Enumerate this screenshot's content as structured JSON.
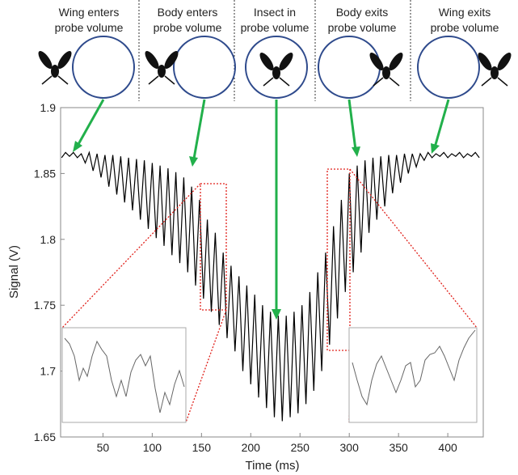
{
  "chart_data": {
    "type": "line",
    "y_label": "Signal (V)",
    "x_label": "Time (ms)",
    "annotations": [
      [
        "Wing enters",
        "probe volume"
      ],
      [
        "Body enters",
        "probe volume"
      ],
      [
        "Insect in",
        "probe volume"
      ],
      [
        "Body exits",
        "probe volume"
      ],
      [
        "Wing exits",
        "probe volume"
      ]
    ],
    "color": "#000000",
    "xlim": [
      7,
      436
    ],
    "ylim": [
      1.65,
      1.9
    ],
    "xticks": [
      50,
      100,
      150,
      200,
      250,
      300,
      350,
      400
    ],
    "yticks": [
      1.65,
      1.7,
      1.75,
      1.8,
      1.85,
      1.9
    ],
    "x": [
      8,
      12,
      16,
      20,
      24,
      28,
      32,
      36,
      40,
      44,
      48,
      52,
      56,
      60,
      64,
      68,
      72,
      76,
      80,
      84,
      88,
      92,
      96,
      100,
      104,
      108,
      112,
      116,
      120,
      124,
      128,
      132,
      136,
      140,
      144,
      148,
      152,
      156,
      160,
      164,
      168,
      172,
      176,
      180,
      184,
      188,
      192,
      196,
      200,
      204,
      208,
      212,
      216,
      220,
      224,
      228,
      232,
      236,
      240,
      244,
      248,
      252,
      256,
      260,
      264,
      268,
      272,
      276,
      280,
      284,
      288,
      292,
      296,
      300,
      304,
      308,
      312,
      316,
      320,
      324,
      328,
      332,
      336,
      340,
      344,
      348,
      352,
      356,
      360,
      364,
      368,
      372,
      376,
      380,
      384,
      388,
      392,
      396,
      400,
      404,
      408,
      412,
      416,
      420,
      424,
      428,
      432
    ],
    "values": [
      1.862,
      1.866,
      1.863,
      1.866,
      1.862,
      1.865,
      1.858,
      1.866,
      1.852,
      1.865,
      1.847,
      1.864,
      1.84,
      1.864,
      1.834,
      1.863,
      1.828,
      1.862,
      1.822,
      1.861,
      1.815,
      1.86,
      1.808,
      1.858,
      1.801,
      1.856,
      1.795,
      1.854,
      1.788,
      1.851,
      1.782,
      1.847,
      1.775,
      1.84,
      1.765,
      1.83,
      1.755,
      1.815,
      1.745,
      1.805,
      1.735,
      1.79,
      1.725,
      1.78,
      1.715,
      1.772,
      1.7,
      1.765,
      1.69,
      1.758,
      1.68,
      1.75,
      1.672,
      1.745,
      1.665,
      1.742,
      1.662,
      1.742,
      1.665,
      1.745,
      1.668,
      1.75,
      1.675,
      1.76,
      1.685,
      1.775,
      1.7,
      1.79,
      1.72,
      1.81,
      1.74,
      1.83,
      1.76,
      1.85,
      1.775,
      1.856,
      1.79,
      1.86,
      1.805,
      1.862,
      1.815,
      1.863,
      1.825,
      1.864,
      1.835,
      1.864,
      1.843,
      1.865,
      1.85,
      1.865,
      1.855,
      1.865,
      1.86,
      1.866,
      1.862,
      1.865,
      1.863,
      1.866,
      1.862,
      1.865,
      1.863,
      1.866,
      1.862,
      1.865,
      1.863,
      1.866,
      1.862
    ]
  }
}
